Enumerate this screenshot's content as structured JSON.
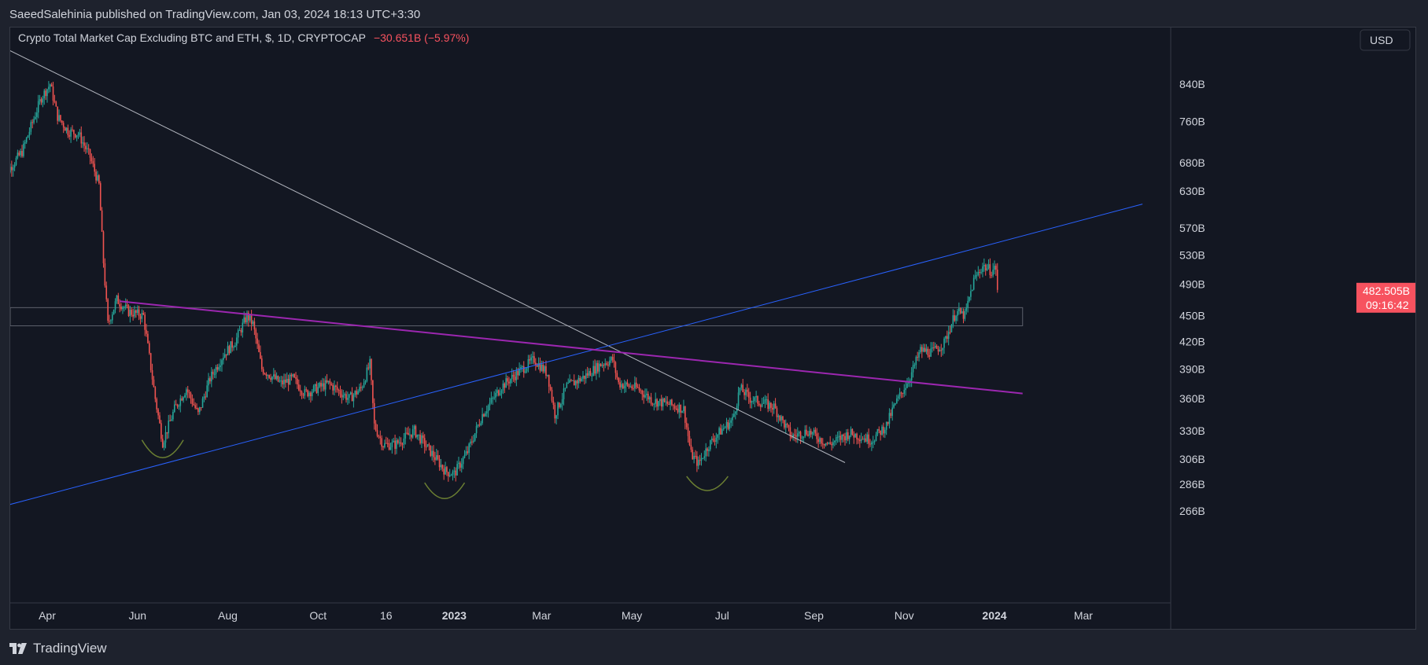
{
  "header": {
    "publisher": "SaeedSalehinia published on TradingView.com, Jan 03, 2024 18:13 UTC+3:30"
  },
  "symbol": {
    "title": "Crypto Total Market Cap Excluding BTC and ETH, $, 1D, CRYPTOCAP",
    "change": "−30.651B (−5.97%)",
    "change_color": "#f7525f"
  },
  "currency_button": "USD",
  "price_tag": {
    "price": "482.505B",
    "countdown": "09:16:42",
    "color": "#f7525f"
  },
  "footer": {
    "brand": "TradingView"
  },
  "colors": {
    "background": "#131722",
    "panel": "#1e222d",
    "text": "#d1d4dc",
    "up": "#26a69a",
    "down": "#ef5350",
    "trend_blue": "#2962ff",
    "trend_gray": "#b2b5be",
    "trend_purple": "#9c27b0",
    "curve_olive": "#6b7f32"
  },
  "chart_data": {
    "type": "candlestick",
    "title": "Crypto Total Market Cap Excluding BTC and ETH, $, 1D, CRYPTOCAP",
    "y_scale": "log",
    "y_unit": "B",
    "x_tick_labels": [
      {
        "date": "2022-04-01",
        "label": "Apr",
        "bold": false
      },
      {
        "date": "2022-06-01",
        "label": "Jun",
        "bold": false
      },
      {
        "date": "2022-08-01",
        "label": "Aug",
        "bold": false
      },
      {
        "date": "2022-10-01",
        "label": "Oct",
        "bold": false
      },
      {
        "date": "2022-11-16",
        "label": "16",
        "bold": false
      },
      {
        "date": "2023-01-01",
        "label": "2023",
        "bold": true
      },
      {
        "date": "2023-03-01",
        "label": "Mar",
        "bold": false
      },
      {
        "date": "2023-05-01",
        "label": "May",
        "bold": false
      },
      {
        "date": "2023-07-01",
        "label": "Jul",
        "bold": false
      },
      {
        "date": "2023-09-01",
        "label": "Sep",
        "bold": false
      },
      {
        "date": "2023-11-01",
        "label": "Nov",
        "bold": false
      },
      {
        "date": "2024-01-01",
        "label": "2024",
        "bold": true
      },
      {
        "date": "2024-03-01",
        "label": "Mar",
        "bold": false
      }
    ],
    "y_ticks": [
      {
        "value": 840,
        "label": "840B"
      },
      {
        "value": 760,
        "label": "760B"
      },
      {
        "value": 680,
        "label": "680B"
      },
      {
        "value": 630,
        "label": "630B"
      },
      {
        "value": 570,
        "label": "570B"
      },
      {
        "value": 530,
        "label": "530B"
      },
      {
        "value": 490,
        "label": "490B"
      },
      {
        "value": 450,
        "label": "450B"
      },
      {
        "value": 420,
        "label": "420B"
      },
      {
        "value": 390,
        "label": "390B"
      },
      {
        "value": 360,
        "label": "360B"
      },
      {
        "value": 330,
        "label": "330B"
      },
      {
        "value": 306,
        "label": "306B"
      },
      {
        "value": 286,
        "label": "286B"
      },
      {
        "value": 266,
        "label": "266B"
      }
    ],
    "price_path": [
      [
        "2022-03-01",
        650
      ],
      [
        "2022-03-15",
        700
      ],
      [
        "2022-03-28",
        810
      ],
      [
        "2022-04-03",
        840
      ],
      [
        "2022-04-08",
        770
      ],
      [
        "2022-04-15",
        740
      ],
      [
        "2022-04-22",
        735
      ],
      [
        "2022-04-30",
        690
      ],
      [
        "2022-05-06",
        640
      ],
      [
        "2022-05-09",
        520
      ],
      [
        "2022-05-12",
        440
      ],
      [
        "2022-05-18",
        470
      ],
      [
        "2022-05-26",
        455
      ],
      [
        "2022-06-05",
        450
      ],
      [
        "2022-06-13",
        360
      ],
      [
        "2022-06-18",
        320
      ],
      [
        "2022-06-26",
        350
      ],
      [
        "2022-07-04",
        370
      ],
      [
        "2022-07-12",
        345
      ],
      [
        "2022-07-20",
        380
      ],
      [
        "2022-07-29",
        405
      ],
      [
        "2022-08-06",
        420
      ],
      [
        "2022-08-14",
        450
      ],
      [
        "2022-08-18",
        440
      ],
      [
        "2022-08-24",
        390
      ],
      [
        "2022-09-06",
        375
      ],
      [
        "2022-09-14",
        380
      ],
      [
        "2022-09-22",
        365
      ],
      [
        "2022-10-08",
        375
      ],
      [
        "2022-10-22",
        360
      ],
      [
        "2022-10-30",
        370
      ],
      [
        "2022-11-05",
        395
      ],
      [
        "2022-11-08",
        335
      ],
      [
        "2022-11-14",
        318
      ],
      [
        "2022-11-22",
        318
      ],
      [
        "2022-12-05",
        330
      ],
      [
        "2022-12-16",
        312
      ],
      [
        "2022-12-26",
        296
      ],
      [
        "2023-01-01",
        294
      ],
      [
        "2023-01-10",
        312
      ],
      [
        "2023-01-20",
        345
      ],
      [
        "2023-02-02",
        372
      ],
      [
        "2023-02-16",
        390
      ],
      [
        "2023-02-24",
        400
      ],
      [
        "2023-03-05",
        385
      ],
      [
        "2023-03-10",
        345
      ],
      [
        "2023-03-18",
        372
      ],
      [
        "2023-03-28",
        380
      ],
      [
        "2023-04-10",
        395
      ],
      [
        "2023-04-18",
        400
      ],
      [
        "2023-04-22",
        375
      ],
      [
        "2023-05-05",
        370
      ],
      [
        "2023-05-15",
        358
      ],
      [
        "2023-05-25",
        355
      ],
      [
        "2023-06-05",
        350
      ],
      [
        "2023-06-10",
        310
      ],
      [
        "2023-06-15",
        302
      ],
      [
        "2023-06-22",
        318
      ],
      [
        "2023-06-30",
        330
      ],
      [
        "2023-07-08",
        340
      ],
      [
        "2023-07-13",
        370
      ],
      [
        "2023-07-20",
        360
      ],
      [
        "2023-08-05",
        352
      ],
      [
        "2023-08-17",
        325
      ],
      [
        "2023-08-28",
        330
      ],
      [
        "2023-09-11",
        318
      ],
      [
        "2023-09-25",
        328
      ],
      [
        "2023-10-10",
        322
      ],
      [
        "2023-10-20",
        335
      ],
      [
        "2023-10-25",
        352
      ],
      [
        "2023-11-05",
        382
      ],
      [
        "2023-11-12",
        410
      ],
      [
        "2023-11-20",
        408
      ],
      [
        "2023-11-28",
        418
      ],
      [
        "2023-12-06",
        455
      ],
      [
        "2023-12-12",
        450
      ],
      [
        "2023-12-18",
        495
      ],
      [
        "2023-12-24",
        515
      ],
      [
        "2023-12-30",
        508
      ],
      [
        "2024-01-02",
        512
      ],
      [
        "2024-01-03",
        482.505
      ]
    ],
    "drawings": {
      "trendlines": [
        {
          "name": "descending-gray-trendline",
          "color": "#b2b5be",
          "from": [
            "2022-03-01",
            930
          ],
          "to": [
            "2023-09-22",
            303
          ]
        },
        {
          "name": "ascending-blue-trendline",
          "color": "#2962ff",
          "from": [
            "2022-03-01",
            269
          ],
          "to": [
            "2024-04-10",
            608
          ]
        },
        {
          "name": "descending-purple-trendline",
          "color": "#9c27b0",
          "from": [
            "2022-05-20",
            468
          ],
          "to": [
            "2024-01-20",
            365
          ]
        }
      ],
      "zone": {
        "name": "support-resistance-zone",
        "from_date": "2022-03-01",
        "to_date": "2024-01-20",
        "low": 438,
        "high": 460
      },
      "curves": [
        {
          "name": "bottom-curve-1",
          "from": [
            "2022-06-04",
            322
          ],
          "to": [
            "2022-07-02",
            322
          ],
          "low": 307
        },
        {
          "name": "bottom-curve-2",
          "from": [
            "2022-12-12",
            287
          ],
          "to": [
            "2023-01-08",
            287
          ],
          "low": 275
        },
        {
          "name": "bottom-curve-3",
          "from": [
            "2023-06-07",
            292
          ],
          "to": [
            "2023-07-05",
            292
          ],
          "low": 281
        }
      ]
    }
  }
}
